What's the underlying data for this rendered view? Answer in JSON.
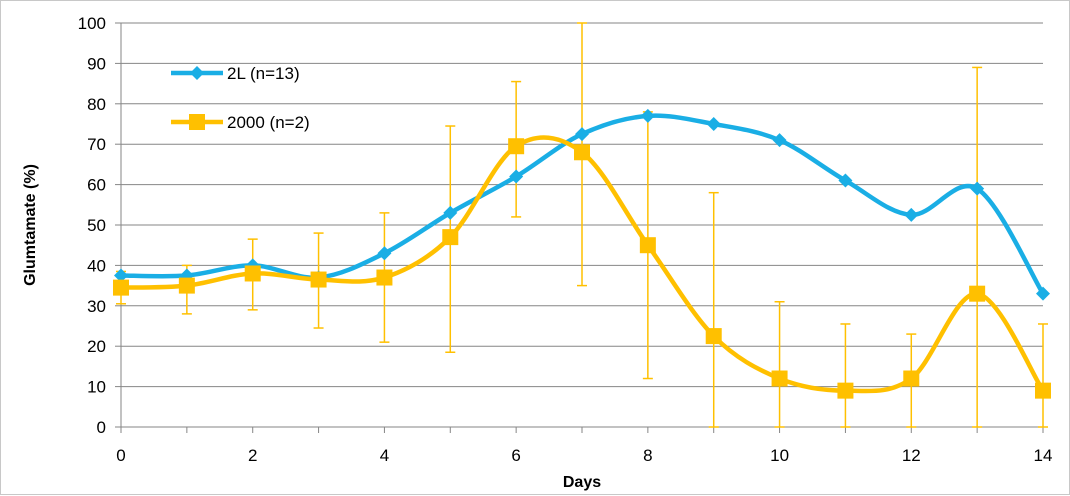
{
  "chart_data": {
    "type": "line",
    "title": "",
    "xlabel": "Days",
    "ylabel": "Glumtamate (%)",
    "xlim": [
      0,
      14
    ],
    "ylim": [
      0,
      100
    ],
    "x_ticks": [
      0,
      2,
      4,
      6,
      8,
      10,
      12,
      14
    ],
    "y_ticks": [
      0,
      10,
      20,
      30,
      40,
      50,
      60,
      70,
      80,
      90,
      100
    ],
    "grid": true,
    "legend_position": "top-left",
    "series": [
      {
        "name": "2L (n=13)",
        "color": "#1aaee5",
        "marker": "diamond",
        "x": [
          0,
          1,
          2,
          3,
          4,
          5,
          6,
          7,
          8,
          9,
          10,
          11,
          12,
          13,
          14
        ],
        "values": [
          37.5,
          37.5,
          40,
          37,
          43,
          53,
          62,
          72.5,
          77,
          75,
          71,
          61,
          52.5,
          59,
          33
        ]
      },
      {
        "name": "2000 (n=2)",
        "color": "#ffc000",
        "marker": "square",
        "x": [
          0,
          1,
          2,
          3,
          4,
          5,
          6,
          7,
          8,
          9,
          10,
          11,
          12,
          13,
          14
        ],
        "values": [
          34.5,
          35,
          38,
          36.5,
          37,
          47,
          69.5,
          68,
          45,
          22.5,
          12,
          9,
          12,
          33,
          9
        ],
        "error_low": [
          30.5,
          28,
          29,
          24.5,
          21,
          18.5,
          52,
          35,
          12,
          0,
          0,
          0,
          0,
          0,
          0
        ],
        "error_high": [
          38.5,
          40,
          46.5,
          48,
          53,
          74.5,
          85.5,
          100,
          78,
          58,
          31,
          25.5,
          23,
          89,
          25.5
        ]
      }
    ]
  }
}
